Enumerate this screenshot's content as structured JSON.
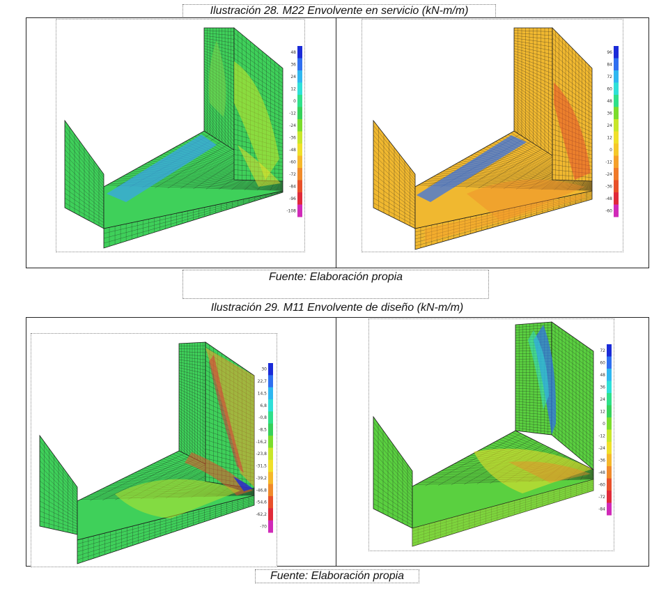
{
  "captions": {
    "fig28_title": "Ilustración 28. M22 Envolvente en servicio (kN-m/m)",
    "fig28_source": "Fuente: Elaboración propia",
    "fig29_title": "Ilustración 29. M11 Envolvente de diseño (kN-m/m)",
    "fig29_source": "Fuente: Elaboración propia"
  },
  "panels": [
    {
      "id": "p28a",
      "scale_labels": [
        "48",
        "36",
        "24",
        "12",
        "0",
        "-12",
        "-24",
        "-36",
        "-48",
        "-60",
        "-72",
        "-84",
        "-96",
        "-108"
      ],
      "scale_colors": [
        "#1a2bd8",
        "#2f6ff0",
        "#2fb7f0",
        "#2fe0d8",
        "#2fe08a",
        "#36d05a",
        "#7bdc2c",
        "#c8e62a",
        "#f0e02a",
        "#f5b82a",
        "#f08a2a",
        "#e8502a",
        "#e02a3a",
        "#d02ab8"
      ],
      "dominant": "#3fd05a"
    },
    {
      "id": "p28b",
      "scale_labels": [
        "96",
        "84",
        "72",
        "60",
        "48",
        "36",
        "24",
        "12",
        "0",
        "-12",
        "-24",
        "-36",
        "-48",
        "-60"
      ],
      "scale_colors": [
        "#1a2bd8",
        "#2f6ff0",
        "#2fb7f0",
        "#2fe0d8",
        "#2fe08a",
        "#7bdc2c",
        "#c8e62a",
        "#f0e02a",
        "#f5c82a",
        "#f5a02a",
        "#f07a2a",
        "#e8502a",
        "#e02a3a",
        "#d02ab8"
      ],
      "dominant": "#f0b830"
    },
    {
      "id": "p29a",
      "scale_labels": [
        "30",
        "22,7",
        "14,5",
        "6,8",
        "-0,8",
        "-8,5",
        "-16,2",
        "-23,8",
        "-31,5",
        "-39,2",
        "-46,8",
        "-54,6",
        "-62,2",
        "-70"
      ],
      "scale_colors": [
        "#1a2bd8",
        "#2f6ff0",
        "#2fb7f0",
        "#2fe0d8",
        "#2fe08a",
        "#36d05a",
        "#7bdc2c",
        "#c8e62a",
        "#f0e02a",
        "#f5b82a",
        "#f08a2a",
        "#e8502a",
        "#e02a3a",
        "#d02ab8"
      ],
      "dominant": "#3fd05a"
    },
    {
      "id": "p29b",
      "scale_labels": [
        "72",
        "60",
        "48",
        "36",
        "24",
        "12",
        "0",
        "-12",
        "-24",
        "-36",
        "-48",
        "-60",
        "-72",
        "-84"
      ],
      "scale_colors": [
        "#1a2bd8",
        "#2f6ff0",
        "#2fb7f0",
        "#2fe0d8",
        "#2fe08a",
        "#36d05a",
        "#7bdc2c",
        "#c8e62a",
        "#f0e02a",
        "#f5b82a",
        "#f08a2a",
        "#e8502a",
        "#e02a3a",
        "#d02ab8"
      ],
      "dominant": "#5ad040"
    }
  ]
}
